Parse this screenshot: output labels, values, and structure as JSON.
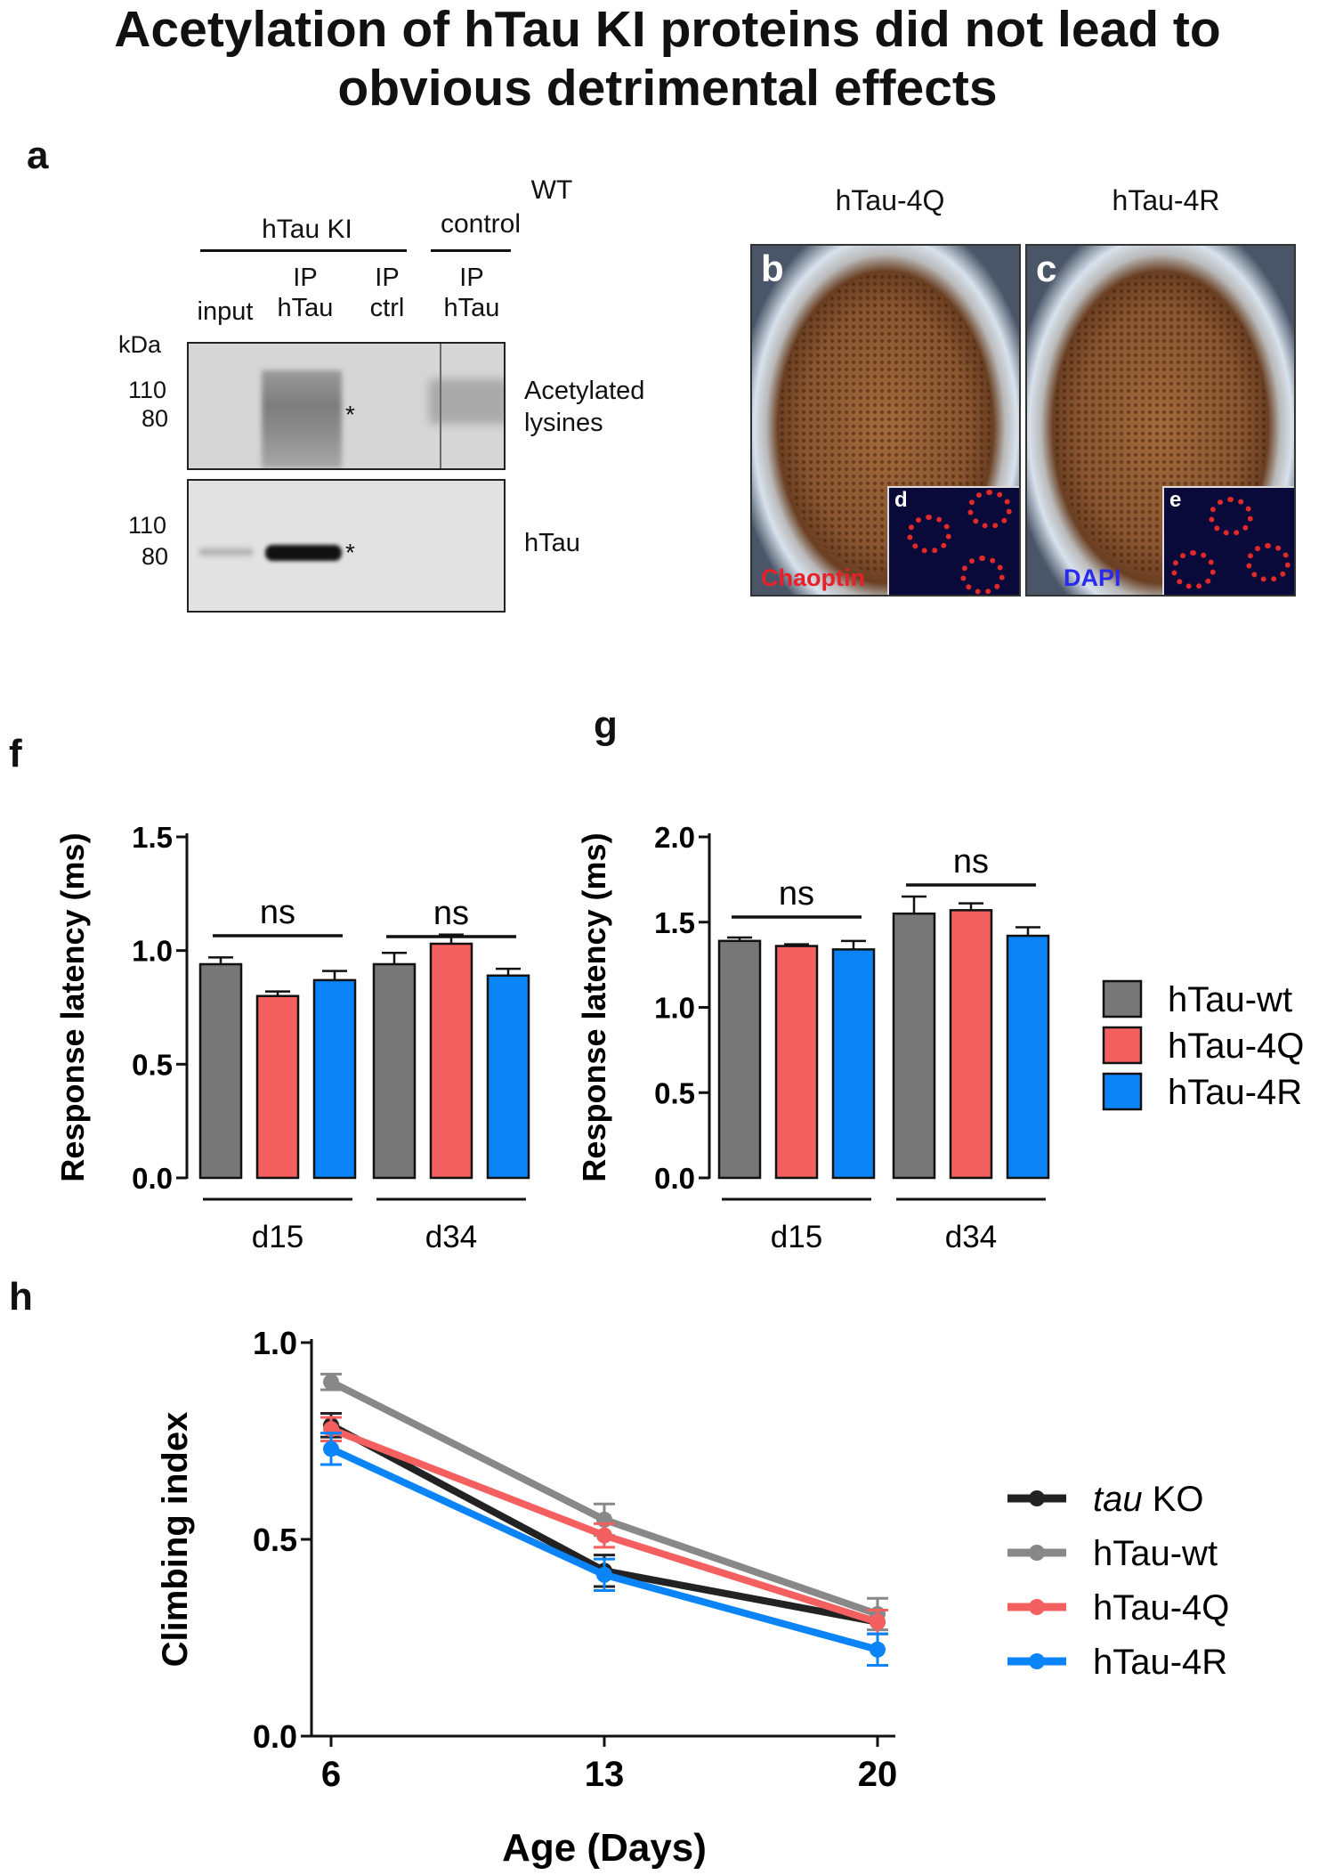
{
  "title": {
    "line1": "Acetylation of hTau KI proteins did not lead to",
    "line2": "obvious detrimental effects"
  },
  "panel_labels": {
    "a": "a",
    "b": "b",
    "c": "c",
    "d": "d",
    "e": "e",
    "f": "f",
    "g": "g",
    "h": "h"
  },
  "blot": {
    "group_ki": "hTau KI",
    "group_wt_line1": "WT",
    "group_wt_line2": "control",
    "lanes": [
      {
        "line1": "",
        "line2": "input"
      },
      {
        "line1": "IP",
        "line2": "hTau"
      },
      {
        "line1": "IP",
        "line2": "ctrl"
      },
      {
        "line1": "IP",
        "line2": "hTau"
      }
    ],
    "kda": "kDa",
    "marker_110": "110",
    "marker_80": "80",
    "marker_110b": "110",
    "marker_80b": "80",
    "asterisk": "*",
    "asterisk2": "*",
    "label_top_line1": "Acetylated",
    "label_top_line2": "lysines",
    "label_bottom": "hTau"
  },
  "eyes": {
    "b_title": "hTau-4Q",
    "c_title": "hTau-4R",
    "stain_red": "Chaoptin",
    "stain_blue": "DAPI"
  },
  "colors": {
    "wt": "#777777",
    "q4": "#f46060",
    "r4": "#0a84f7",
    "ko": "#222222",
    "wt_line": "#888888"
  },
  "chart_data": [
    {
      "panel": "f",
      "type": "bar",
      "ylabel": "Response latency (ms)",
      "ylim": [
        0,
        1.5
      ],
      "yticks": [
        "0.0",
        "0.5",
        "1.0",
        "1.5"
      ],
      "groups": [
        "d15",
        "d34"
      ],
      "series": [
        {
          "name": "hTau-wt",
          "values": [
            0.94,
            0.94
          ],
          "errors": [
            0.03,
            0.05
          ]
        },
        {
          "name": "hTau-4Q",
          "values": [
            0.8,
            1.03
          ],
          "errors": [
            0.02,
            0.04
          ]
        },
        {
          "name": "hTau-4R",
          "values": [
            0.87,
            0.89
          ],
          "errors": [
            0.04,
            0.03
          ]
        }
      ],
      "annotations": [
        "ns",
        "ns"
      ]
    },
    {
      "panel": "g",
      "type": "bar",
      "ylabel": "Response latency (ms)",
      "ylim": [
        0,
        2.0
      ],
      "yticks": [
        "0.0",
        "0.5",
        "1.0",
        "1.5",
        "2.0"
      ],
      "groups": [
        "d15",
        "d34"
      ],
      "series": [
        {
          "name": "hTau-wt",
          "values": [
            1.39,
            1.55
          ],
          "errors": [
            0.02,
            0.1
          ]
        },
        {
          "name": "hTau-4Q",
          "values": [
            1.36,
            1.57
          ],
          "errors": [
            0.01,
            0.04
          ]
        },
        {
          "name": "hTau-4R",
          "values": [
            1.34,
            1.42
          ],
          "errors": [
            0.05,
            0.05
          ]
        }
      ],
      "annotations": [
        "ns",
        "ns"
      ],
      "legend": [
        "hTau-wt",
        "hTau-4Q",
        "hTau-4R"
      ]
    },
    {
      "panel": "h",
      "type": "line",
      "xlabel": "Age (Days)",
      "ylabel": "Climbing index",
      "x": [
        6,
        13,
        20
      ],
      "xticks": [
        "6",
        "13",
        "20"
      ],
      "ylim": [
        0,
        1.0
      ],
      "yticks": [
        "0.0",
        "0.5",
        "1.0"
      ],
      "series": [
        {
          "name": "tau KO",
          "name_italic": "tau",
          "name_rest": " KO",
          "values": [
            0.79,
            0.42,
            0.29
          ],
          "errors": [
            0.03,
            0.04,
            0.03
          ]
        },
        {
          "name": "hTau-wt",
          "values": [
            0.9,
            0.55,
            0.31
          ],
          "errors": [
            0.02,
            0.04,
            0.04
          ]
        },
        {
          "name": "hTau-4Q",
          "values": [
            0.78,
            0.51,
            0.29
          ],
          "errors": [
            0.03,
            0.03,
            0.03
          ]
        },
        {
          "name": "hTau-4R",
          "values": [
            0.73,
            0.41,
            0.22
          ],
          "errors": [
            0.04,
            0.04,
            0.04
          ]
        }
      ]
    }
  ]
}
